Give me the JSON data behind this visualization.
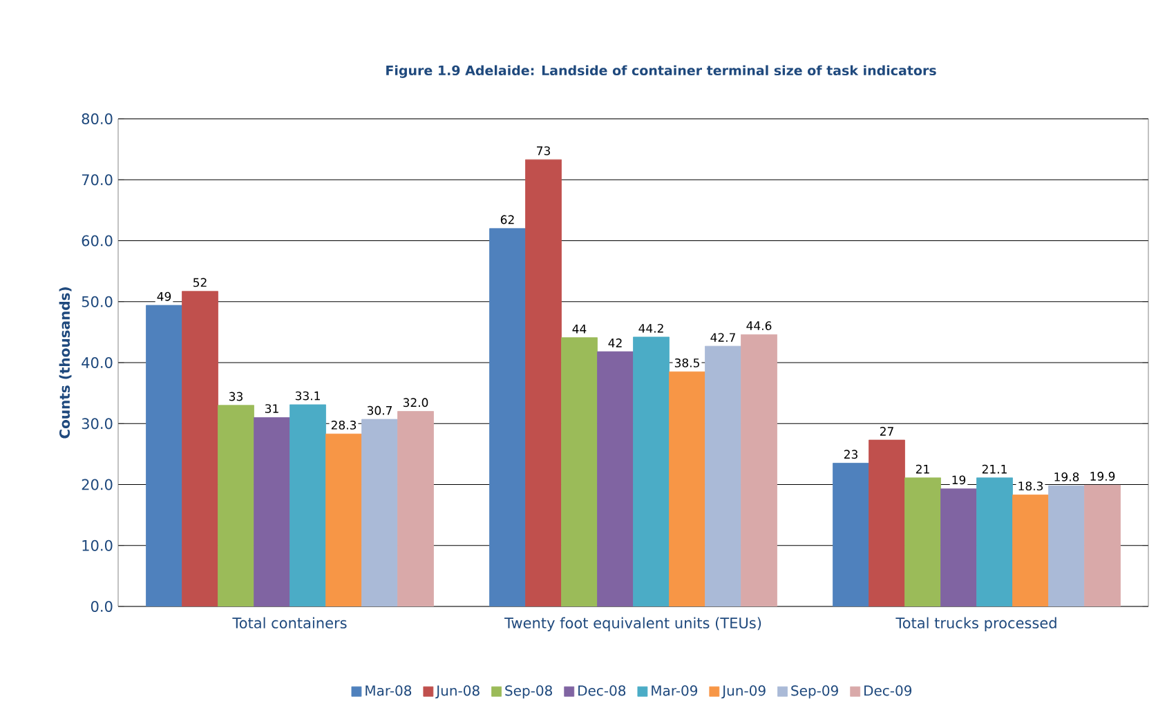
{
  "chart_data": {
    "type": "bar",
    "title": "Figure 1.9 Adelaide: Landside of container terminal size of task indicators",
    "ylabel": "Counts (thousands)",
    "categories": [
      "Total containers",
      "Twenty foot equivalent units (TEUs)",
      "Total trucks processed"
    ],
    "series": [
      {
        "name": "Mar-08",
        "color": "#4f81bd",
        "values": [
          49.4,
          62.0,
          23.5
        ],
        "value_labels": [
          "49",
          "62",
          "23"
        ]
      },
      {
        "name": "Jun-08",
        "color": "#c0504d",
        "values": [
          51.7,
          73.3,
          27.3
        ],
        "value_labels": [
          "52",
          "73",
          "27"
        ]
      },
      {
        "name": "Sep-08",
        "color": "#9bbb59",
        "values": [
          33.0,
          44.1,
          21.1
        ],
        "value_labels": [
          "33",
          "44",
          "21"
        ]
      },
      {
        "name": "Dec-08",
        "color": "#8064a2",
        "values": [
          31.0,
          41.8,
          19.3
        ],
        "value_labels": [
          "31",
          "42",
          "19"
        ]
      },
      {
        "name": "Mar-09",
        "color": "#4bacc6",
        "values": [
          33.1,
          44.2,
          21.1
        ],
        "value_labels": [
          "33.1",
          "44.2",
          "21.1"
        ]
      },
      {
        "name": "Jun-09",
        "color": "#f79646",
        "values": [
          28.3,
          38.5,
          18.3
        ],
        "value_labels": [
          "28.3",
          "38.5",
          "18.3"
        ]
      },
      {
        "name": "Sep-09",
        "color": "#aabad7",
        "values": [
          30.7,
          42.7,
          19.8
        ],
        "value_labels": [
          "30.7",
          "42.7",
          "19.8"
        ]
      },
      {
        "name": "Dec-09",
        "color": "#d9a9a9",
        "values": [
          32.0,
          44.6,
          19.9
        ],
        "value_labels": [
          "32.0",
          "44.6",
          "19.9"
        ]
      }
    ],
    "ylim": [
      0,
      80
    ],
    "yticks": [
      {
        "value": 0,
        "label": "0.0"
      },
      {
        "value": 10,
        "label": "10.0"
      },
      {
        "value": 20,
        "label": "20.0"
      },
      {
        "value": 30,
        "label": "30.0"
      },
      {
        "value": 40,
        "label": "40.0"
      },
      {
        "value": 50,
        "label": "50.0"
      },
      {
        "value": 60,
        "label": "60.0"
      },
      {
        "value": 70,
        "label": "70.0"
      },
      {
        "value": 80,
        "label": "80.0"
      }
    ],
    "grid": "y",
    "legend": "bottom"
  }
}
